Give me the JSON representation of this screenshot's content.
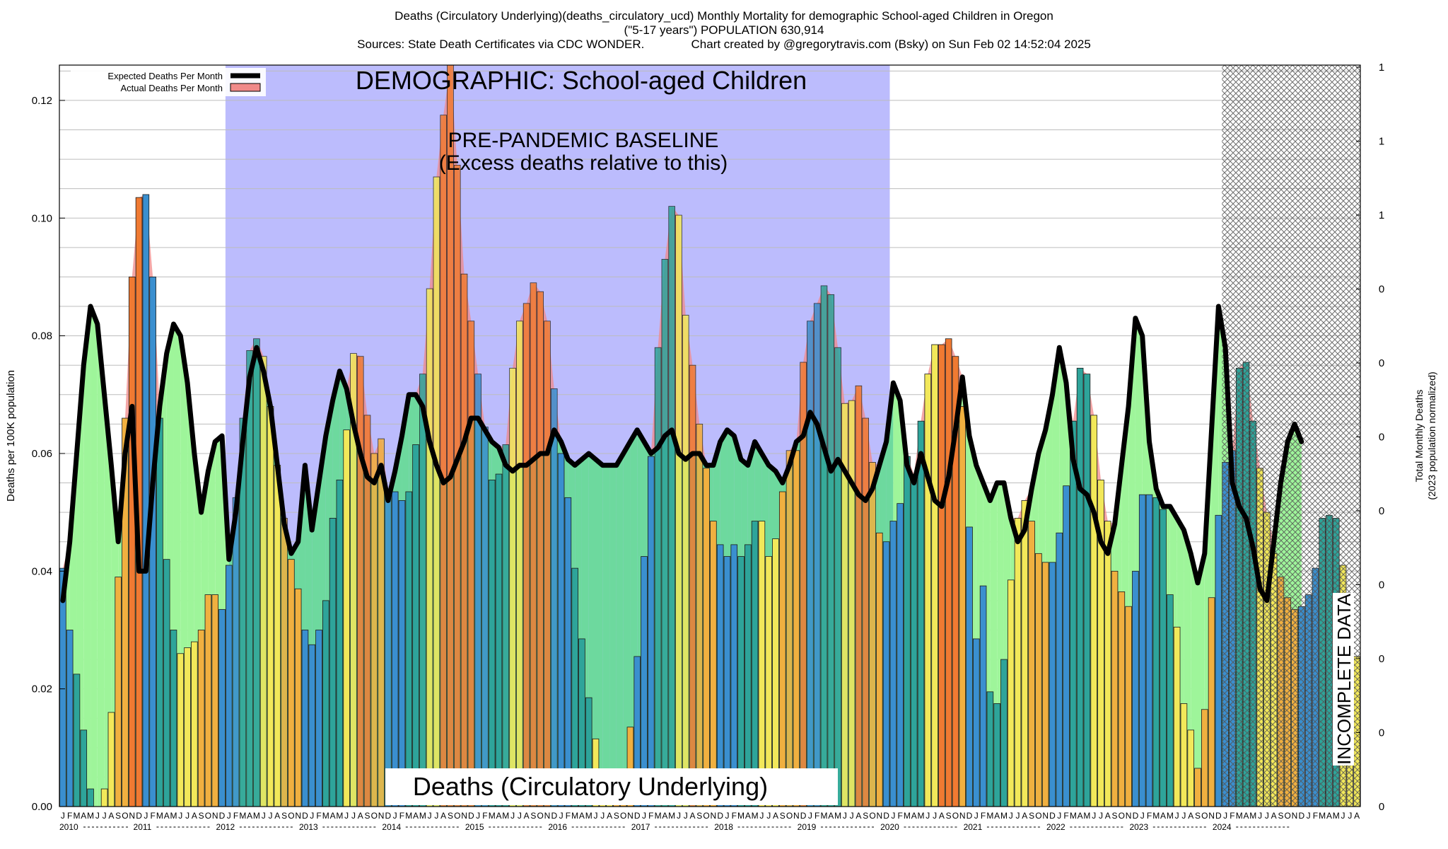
{
  "header": {
    "title": "Deaths (Circulatory Underlying)(deaths_circulatory_ucd) Monthly Mortality for demographic School-aged Children in Oregon",
    "subtitle": "(\"5-17 years\") POPULATION 630,914",
    "sources": "Sources: State Death Certificates via CDC WONDER.              Chart created by @gregorytravis.com (Bsky) on Sun Feb 02 14:52:04 2025"
  },
  "annotations": {
    "demographic": "DEMOGRAPHIC: School-aged Children",
    "baseline_line1": "PRE-PANDEMIC BASELINE",
    "baseline_line2": "(Excess deaths relative to this)",
    "cause": "Deaths (Circulatory Underlying)",
    "incomplete": "INCOMPLETE DATA"
  },
  "legend": {
    "expected": "Expected Deaths Per Month",
    "actual": "Actual Deaths Per Month",
    "placement": "top-left"
  },
  "axes": {
    "ylabel": "Deaths per 100K population",
    "y2label_line1": "Total Monthly Deaths",
    "y2label_line2": "(2023 population normalized)",
    "month_letters": [
      "J",
      "F",
      "M",
      "A",
      "M",
      "J",
      "J",
      "A",
      "S",
      "O",
      "N",
      "D"
    ]
  },
  "colors": {
    "baseline_band": "#bcbcfd",
    "expected_fill": "#9ef59a",
    "expected_fill_in_band": "#6dd99e",
    "excess_fill": "#f08a8a",
    "expected_line": "#000000",
    "bar_blue": "#3a8fcf",
    "bar_teal": "#2ea49a",
    "bar_yellow": "#f2e85a",
    "bar_orange": "#f0b040",
    "bar_over_orange": "#f07a32"
  },
  "chart_data": {
    "type": "bar",
    "title": "Deaths (Circulatory Underlying)(deaths_circulatory_ucd) Monthly Mortality for demographic School-aged Children in Oregon",
    "ylabel": "Deaths per 100K population",
    "y2label": "Total Monthly Deaths (2023 population normalized)",
    "ylim": [
      0,
      0.126
    ],
    "yticks": [
      0.0,
      0.02,
      0.04,
      0.06,
      0.08,
      0.1,
      0.12
    ],
    "y2ticks": [
      "0",
      "0",
      "0",
      "0",
      "0",
      "0",
      "0",
      "0",
      "1",
      "1",
      "1",
      "1"
    ],
    "start": "2010-01",
    "years": [
      "2010",
      "2011",
      "2012",
      "2013",
      "2014",
      "2015",
      "2016",
      "2017",
      "2018",
      "2019",
      "2020",
      "2021",
      "2022",
      "2023",
      "2024"
    ],
    "baseline_period": [
      "2012-01",
      "2019-12"
    ],
    "incomplete_from": "2024-01",
    "grid": true,
    "series": [
      {
        "name": "Actual Deaths Per Month",
        "values": [
          0.0405,
          0.03,
          0.0225,
          0.013,
          0.003,
          0.0,
          0.003,
          0.016,
          0.039,
          0.066,
          0.09,
          0.1035,
          0.104,
          0.09,
          0.066,
          0.042,
          0.03,
          0.026,
          0.027,
          0.028,
          0.03,
          0.036,
          0.036,
          0.0335,
          0.041,
          0.0525,
          0.066,
          0.0775,
          0.0795,
          0.0765,
          0.068,
          0.058,
          0.049,
          0.042,
          0.037,
          0.03,
          0.0275,
          0.03,
          0.035,
          0.049,
          0.0555,
          0.064,
          0.077,
          0.0765,
          0.0665,
          0.06,
          0.0625,
          0.0535,
          0.0535,
          0.052,
          0.0535,
          0.0615,
          0.0735,
          0.088,
          0.107,
          0.1175,
          0.126,
          0.109,
          0.0905,
          0.0825,
          0.0735,
          0.0645,
          0.0555,
          0.0565,
          0.0615,
          0.0745,
          0.0825,
          0.0855,
          0.089,
          0.0875,
          0.0825,
          0.071,
          0.06,
          0.0525,
          0.0405,
          0.0285,
          0.0185,
          0.0115,
          0.004,
          0.003,
          0.002,
          0.004,
          0.0135,
          0.0255,
          0.0425,
          0.0595,
          0.078,
          0.093,
          0.102,
          0.1005,
          0.0835,
          0.075,
          0.065,
          0.0575,
          0.0485,
          0.0445,
          0.0425,
          0.0445,
          0.0425,
          0.0445,
          0.0485,
          0.0485,
          0.0425,
          0.0455,
          0.0535,
          0.0605,
          0.0605,
          0.0755,
          0.0825,
          0.0855,
          0.0885,
          0.087,
          0.078,
          0.0685,
          0.069,
          0.0715,
          0.066,
          0.0585,
          0.0465,
          0.045,
          0.0485,
          0.0515,
          0.0595,
          0.0565,
          0.0655,
          0.0735,
          0.0785,
          0.0785,
          0.0795,
          0.0765,
          0.068,
          0.0475,
          0.0285,
          0.0375,
          0.0195,
          0.0175,
          0.025,
          0.0385,
          0.049,
          0.052,
          0.0485,
          0.043,
          0.0415,
          0.0415,
          0.0465,
          0.0545,
          0.0655,
          0.0745,
          0.0735,
          0.0665,
          0.0555,
          0.0485,
          0.04,
          0.0365,
          0.034,
          0.04,
          0.053,
          0.053,
          0.0525,
          0.0505,
          0.036,
          0.0305,
          0.0175,
          0.013,
          0.0065,
          0.0165,
          0.0355,
          0.0495,
          0.0585,
          0.0605,
          0.0745,
          0.0755,
          0.0655,
          0.0575,
          0.05,
          0.043,
          0.039,
          0.0355,
          0.0335,
          0.034,
          0.036,
          0.0405,
          0.049,
          0.0495,
          0.049,
          0.041,
          0.0315,
          0.0255
        ]
      },
      {
        "name": "Expected Deaths Per Month",
        "values": [
          0.035,
          0.045,
          0.06,
          0.075,
          0.085,
          0.082,
          0.07,
          0.058,
          0.045,
          0.06,
          0.068,
          0.04,
          0.04,
          0.055,
          0.068,
          0.077,
          0.082,
          0.08,
          0.072,
          0.06,
          0.05,
          0.057,
          0.062,
          0.063,
          0.042,
          0.05,
          0.062,
          0.073,
          0.078,
          0.074,
          0.068,
          0.058,
          0.048,
          0.043,
          0.045,
          0.058,
          0.047,
          0.055,
          0.063,
          0.069,
          0.074,
          0.071,
          0.065,
          0.06,
          0.056,
          0.055,
          0.058,
          0.052,
          0.057,
          0.063,
          0.07,
          0.07,
          0.068,
          0.062,
          0.058,
          0.055,
          0.056,
          0.059,
          0.062,
          0.066,
          0.066,
          0.064,
          0.062,
          0.061,
          0.058,
          0.057,
          0.058,
          0.058,
          0.059,
          0.06,
          0.06,
          0.064,
          0.062,
          0.059,
          0.058,
          0.059,
          0.06,
          0.059,
          0.058,
          0.058,
          0.058,
          0.06,
          0.062,
          0.064,
          0.062,
          0.06,
          0.061,
          0.063,
          0.064,
          0.06,
          0.059,
          0.06,
          0.06,
          0.058,
          0.058,
          0.062,
          0.064,
          0.063,
          0.059,
          0.058,
          0.062,
          0.06,
          0.058,
          0.057,
          0.055,
          0.058,
          0.062,
          0.063,
          0.067,
          0.065,
          0.061,
          0.057,
          0.059,
          0.057,
          0.055,
          0.053,
          0.052,
          0.054,
          0.058,
          0.062,
          0.072,
          0.069,
          0.058,
          0.055,
          0.06,
          0.056,
          0.052,
          0.051,
          0.056,
          0.064,
          0.073,
          0.063,
          0.058,
          0.055,
          0.052,
          0.055,
          0.055,
          0.049,
          0.045,
          0.047,
          0.054,
          0.06,
          0.064,
          0.07,
          0.078,
          0.072,
          0.059,
          0.054,
          0.053,
          0.05,
          0.045,
          0.043,
          0.048,
          0.058,
          0.068,
          0.083,
          0.08,
          0.062,
          0.054,
          0.051,
          0.051,
          0.049,
          0.047,
          0.043,
          0.038,
          0.043,
          0.064,
          0.085,
          0.078,
          0.055,
          0.051,
          0.049,
          0.044,
          0.037,
          0.035,
          0.045,
          0.055,
          0.062,
          0.065,
          0.062
        ]
      }
    ]
  }
}
